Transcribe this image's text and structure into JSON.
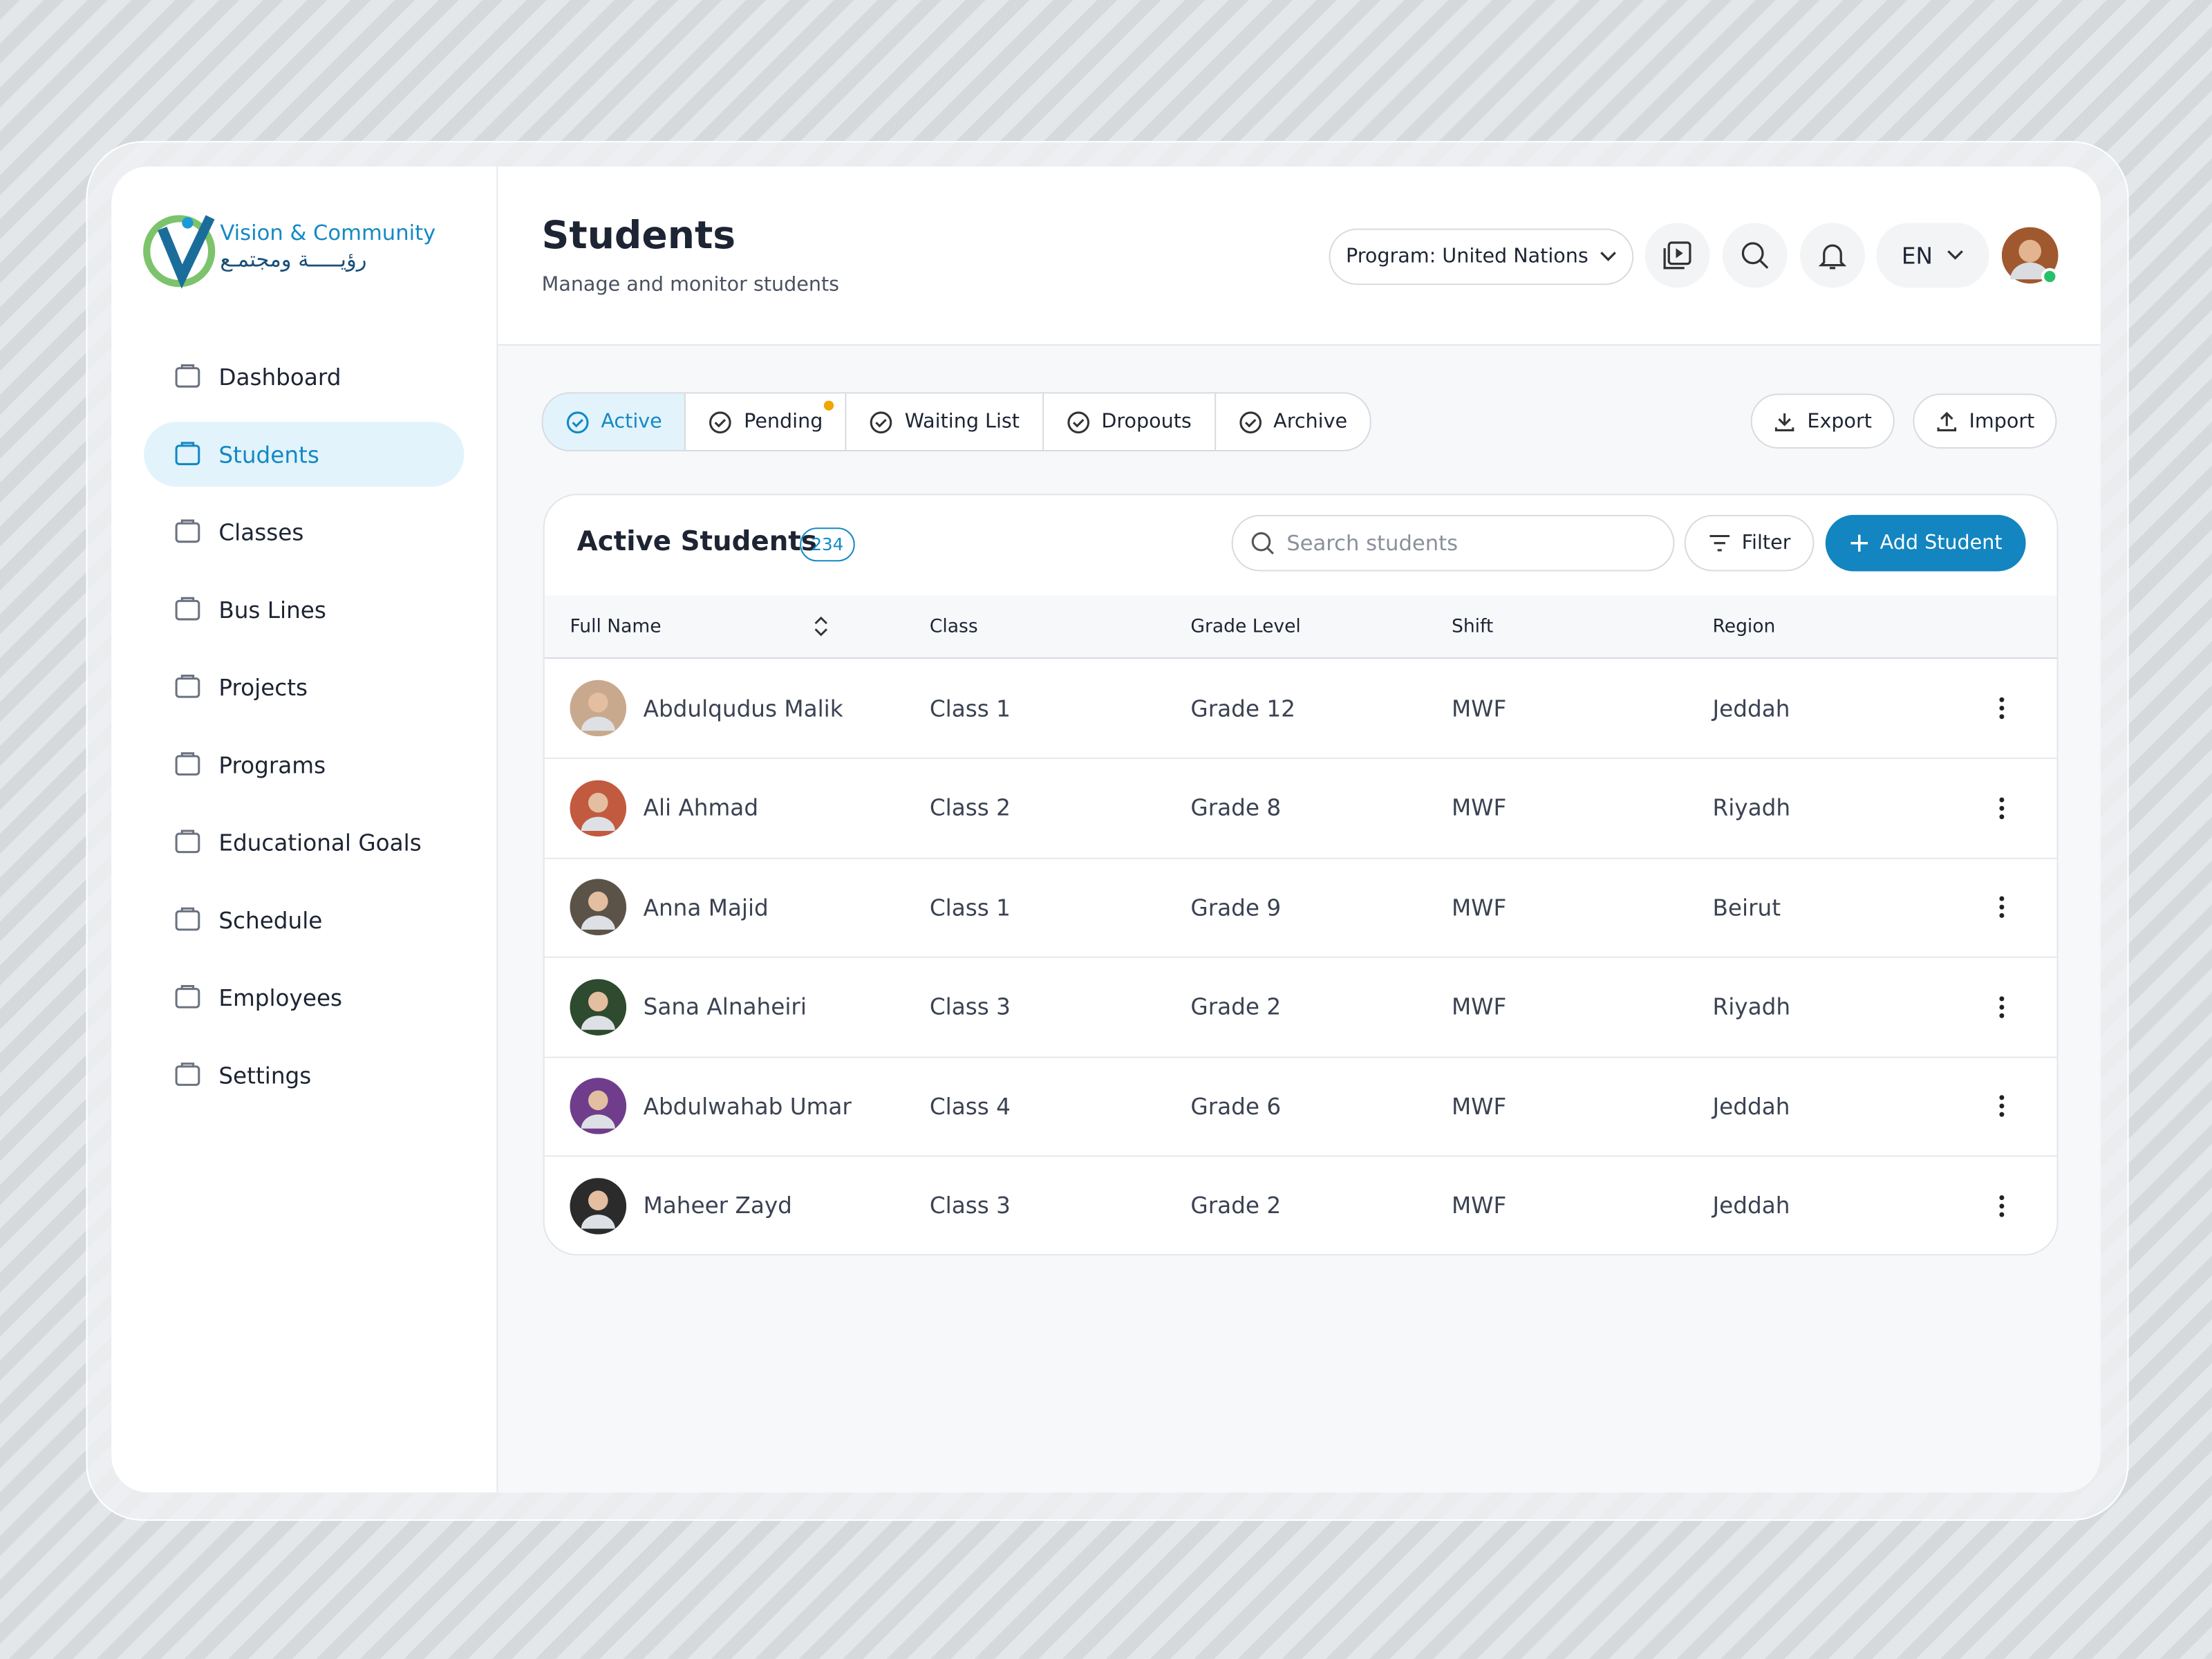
{
  "brand": {
    "name": "Vision & Community",
    "name_ar": "رؤيـــــة ومجتمـع"
  },
  "nav": [
    {
      "label": "Dashboard"
    },
    {
      "label": "Students",
      "active": true
    },
    {
      "label": "Classes"
    },
    {
      "label": "Bus Lines"
    },
    {
      "label": "Projects"
    },
    {
      "label": "Programs"
    },
    {
      "label": "Educational Goals"
    },
    {
      "label": "Schedule"
    },
    {
      "label": "Employees"
    },
    {
      "label": "Settings"
    }
  ],
  "header": {
    "title": "Students",
    "subtitle": "Manage and monitor students",
    "program": "Program: United Nations",
    "language": "EN"
  },
  "tabs": [
    {
      "label": "Active",
      "active": true
    },
    {
      "label": "Pending",
      "dot": true
    },
    {
      "label": "Waiting List"
    },
    {
      "label": "Dropouts"
    },
    {
      "label": "Archive"
    }
  ],
  "actions": {
    "export": "Export",
    "import": "Import"
  },
  "table": {
    "title": "Active Students",
    "count": 234,
    "search": "Search students",
    "filter": "Filter",
    "add": "Add Student",
    "columns": [
      "Full Name",
      "Class",
      "Grade Level",
      "Shift",
      "Region"
    ],
    "rows": [
      [
        "Abdulqudus Malik",
        "Class 1",
        "Grade 12",
        "MWF",
        "Jeddah"
      ],
      [
        "Ali Ahmad",
        "Class 2",
        "Grade 8",
        "MWF",
        "Riyadh"
      ],
      [
        "Anna Majid",
        "Class 1",
        "Grade 9",
        "MWF",
        "Beirut"
      ],
      [
        "Sana Alnaheiri",
        "Class 3",
        "Grade 2",
        "MWF",
        "Riyadh"
      ],
      [
        "Abdulwahab Umar",
        "Class 4",
        "Grade 6",
        "MWF",
        "Jeddah"
      ],
      [
        "Maheer Zayd",
        "Class 3",
        "Grade 2",
        "MWF",
        "Jeddah"
      ]
    ]
  }
}
